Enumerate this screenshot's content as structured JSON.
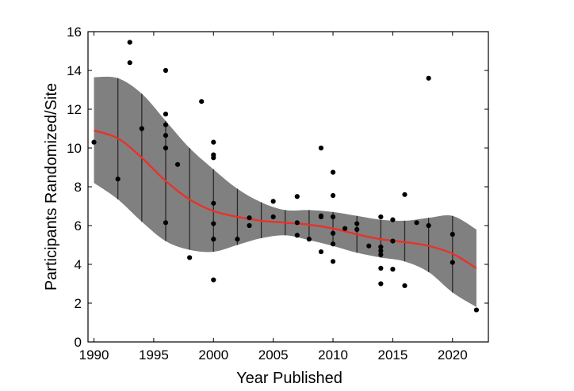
{
  "chart_data": {
    "type": "scatter",
    "xlabel": "Year Published",
    "ylabel": "Participants Randomized/Site",
    "xlim": [
      1989.5,
      2023
    ],
    "ylim": [
      0,
      16
    ],
    "xticks": [
      1990,
      1995,
      2000,
      2005,
      2010,
      2015,
      2020
    ],
    "yticks": [
      0,
      2,
      4,
      6,
      8,
      10,
      12,
      14,
      16
    ],
    "grid": false,
    "legend": "none",
    "colors": {
      "points": "#000000",
      "fit_line": "#e8322b",
      "band": "#808080",
      "band_lines": "#2a2a2a",
      "axes": "#000000"
    },
    "points": [
      [
        1990,
        10.3
      ],
      [
        1992,
        8.4
      ],
      [
        1993,
        15.45
      ],
      [
        1993,
        14.4
      ],
      [
        1994,
        11.0
      ],
      [
        1996,
        14.0
      ],
      [
        1996,
        11.75
      ],
      [
        1996,
        11.2
      ],
      [
        1996,
        10.65
      ],
      [
        1996,
        10.0
      ],
      [
        1996,
        6.15
      ],
      [
        1997,
        9.15
      ],
      [
        1998,
        4.35
      ],
      [
        1999,
        12.4
      ],
      [
        2000,
        10.3
      ],
      [
        2000,
        9.65
      ],
      [
        2000,
        9.5
      ],
      [
        2000,
        7.15
      ],
      [
        2000,
        6.1
      ],
      [
        2000,
        5.3
      ],
      [
        2000,
        3.2
      ],
      [
        2002,
        5.3
      ],
      [
        2003,
        6.4
      ],
      [
        2003,
        6.0
      ],
      [
        2005,
        7.25
      ],
      [
        2005,
        6.45
      ],
      [
        2007,
        7.5
      ],
      [
        2007,
        6.15
      ],
      [
        2007,
        5.5
      ],
      [
        2008,
        5.3
      ],
      [
        2009,
        10.0
      ],
      [
        2009,
        6.5
      ],
      [
        2009,
        6.45
      ],
      [
        2009,
        4.65
      ],
      [
        2010,
        8.75
      ],
      [
        2010,
        7.55
      ],
      [
        2010,
        6.45
      ],
      [
        2010,
        5.6
      ],
      [
        2010,
        5.05
      ],
      [
        2010,
        4.15
      ],
      [
        2011,
        5.85
      ],
      [
        2012,
        6.1
      ],
      [
        2012,
        5.8
      ],
      [
        2013,
        4.95
      ],
      [
        2014,
        6.45
      ],
      [
        2014,
        4.9
      ],
      [
        2014,
        4.7
      ],
      [
        2014,
        4.5
      ],
      [
        2014,
        3.8
      ],
      [
        2014,
        3.0
      ],
      [
        2015,
        6.3
      ],
      [
        2015,
        5.2
      ],
      [
        2015,
        3.75
      ],
      [
        2016,
        7.6
      ],
      [
        2016,
        2.9
      ],
      [
        2017,
        6.15
      ],
      [
        2018,
        13.6
      ],
      [
        2018,
        6.0
      ],
      [
        2020,
        5.55
      ],
      [
        2020,
        4.1
      ],
      [
        2022,
        1.65
      ]
    ],
    "fit": {
      "x": [
        1990,
        1992,
        1994,
        1996,
        1998,
        2000,
        2002,
        2004,
        2006,
        2008,
        2010,
        2012,
        2014,
        2016,
        2018,
        2020,
        2022
      ],
      "y": [
        10.9,
        10.5,
        9.5,
        8.3,
        7.35,
        6.75,
        6.45,
        6.25,
        6.15,
        6.05,
        5.85,
        5.55,
        5.3,
        5.15,
        4.95,
        4.55,
        3.8
      ],
      "lower": [
        8.2,
        7.35,
        6.2,
        5.2,
        4.75,
        4.65,
        5.0,
        5.35,
        5.5,
        5.25,
        4.95,
        4.6,
        4.35,
        4.15,
        3.6,
        2.55,
        1.8
      ],
      "upper": [
        13.65,
        13.6,
        12.8,
        11.4,
        10.0,
        8.9,
        7.9,
        7.2,
        6.8,
        6.8,
        6.7,
        6.5,
        6.3,
        6.25,
        6.4,
        6.5,
        5.8
      ]
    },
    "band_lines_x": [
      1992,
      1994,
      1996,
      1998,
      2000,
      2002,
      2004,
      2006,
      2008,
      2010,
      2012,
      2014,
      2016,
      2018,
      2020
    ]
  }
}
